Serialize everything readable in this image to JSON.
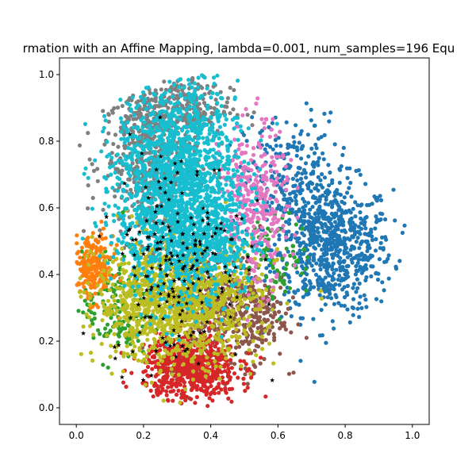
{
  "chart_data": {
    "type": "scatter",
    "title": "rmation with an Affine Mapping, lambda=0.001, num_samples=196 Equ",
    "xlabel": "",
    "ylabel": "",
    "xlim": [
      -0.05,
      1.05
    ],
    "ylim": [
      -0.05,
      1.05
    ],
    "xticks": [
      0.0,
      0.2,
      0.4,
      0.6,
      0.8,
      1.0
    ],
    "xtick_labels": [
      "0.0",
      "0.2",
      "0.4",
      "0.6",
      "0.8",
      "1.0"
    ],
    "yticks": [
      0.0,
      0.2,
      0.4,
      0.6,
      0.8,
      1.0
    ],
    "ytick_labels": [
      "0.0",
      "0.2",
      "0.4",
      "0.6",
      "0.8",
      "1.0"
    ],
    "grid": false,
    "legend": "none",
    "series": [
      {
        "color": "#1f77b4",
        "marker": "circle",
        "clusters": [
          {
            "cx": 0.76,
            "cy": 0.48,
            "sx": 0.09,
            "sy": 0.1,
            "n": 700
          },
          {
            "cx": 0.64,
            "cy": 0.68,
            "sx": 0.07,
            "sy": 0.1,
            "n": 250
          }
        ]
      },
      {
        "color": "#7f7f7f",
        "marker": "circle",
        "clusters": [
          {
            "cx": 0.22,
            "cy": 0.74,
            "sx": 0.07,
            "sy": 0.12,
            "n": 500
          },
          {
            "cx": 0.3,
            "cy": 0.9,
            "sx": 0.08,
            "sy": 0.05,
            "n": 250
          }
        ]
      },
      {
        "color": "#8c564b",
        "marker": "circle",
        "clusters": [
          {
            "cx": 0.42,
            "cy": 0.3,
            "sx": 0.08,
            "sy": 0.09,
            "n": 350
          },
          {
            "cx": 0.52,
            "cy": 0.28,
            "sx": 0.05,
            "sy": 0.07,
            "n": 150
          }
        ]
      },
      {
        "color": "#2ca02c",
        "marker": "circle",
        "clusters": [
          {
            "cx": 0.12,
            "cy": 0.3,
            "sx": 0.05,
            "sy": 0.08,
            "n": 150
          },
          {
            "cx": 0.6,
            "cy": 0.45,
            "sx": 0.05,
            "sy": 0.06,
            "n": 80
          }
        ]
      },
      {
        "color": "#d62728",
        "marker": "circle",
        "clusters": [
          {
            "cx": 0.34,
            "cy": 0.12,
            "sx": 0.07,
            "sy": 0.05,
            "n": 600
          }
        ]
      },
      {
        "color": "#ff7f0e",
        "marker": "circle",
        "clusters": [
          {
            "cx": 0.05,
            "cy": 0.42,
            "sx": 0.03,
            "sy": 0.05,
            "n": 220
          }
        ]
      },
      {
        "color": "#e377c2",
        "marker": "circle",
        "clusters": [
          {
            "cx": 0.53,
            "cy": 0.6,
            "sx": 0.05,
            "sy": 0.12,
            "n": 350
          }
        ]
      },
      {
        "color": "#bcbd22",
        "marker": "circle",
        "clusters": [
          {
            "cx": 0.3,
            "cy": 0.32,
            "sx": 0.12,
            "sy": 0.09,
            "n": 1300
          }
        ]
      },
      {
        "color": "#17becf",
        "marker": "circle",
        "clusters": [
          {
            "cx": 0.3,
            "cy": 0.66,
            "sx": 0.09,
            "sy": 0.16,
            "n": 1800
          },
          {
            "cx": 0.42,
            "cy": 0.5,
            "sx": 0.06,
            "sy": 0.08,
            "n": 200
          }
        ]
      },
      {
        "color": "#000000",
        "marker": "star",
        "clusters": [
          {
            "cx": 0.3,
            "cy": 0.45,
            "sx": 0.1,
            "sy": 0.17,
            "n": 196
          }
        ]
      }
    ]
  }
}
